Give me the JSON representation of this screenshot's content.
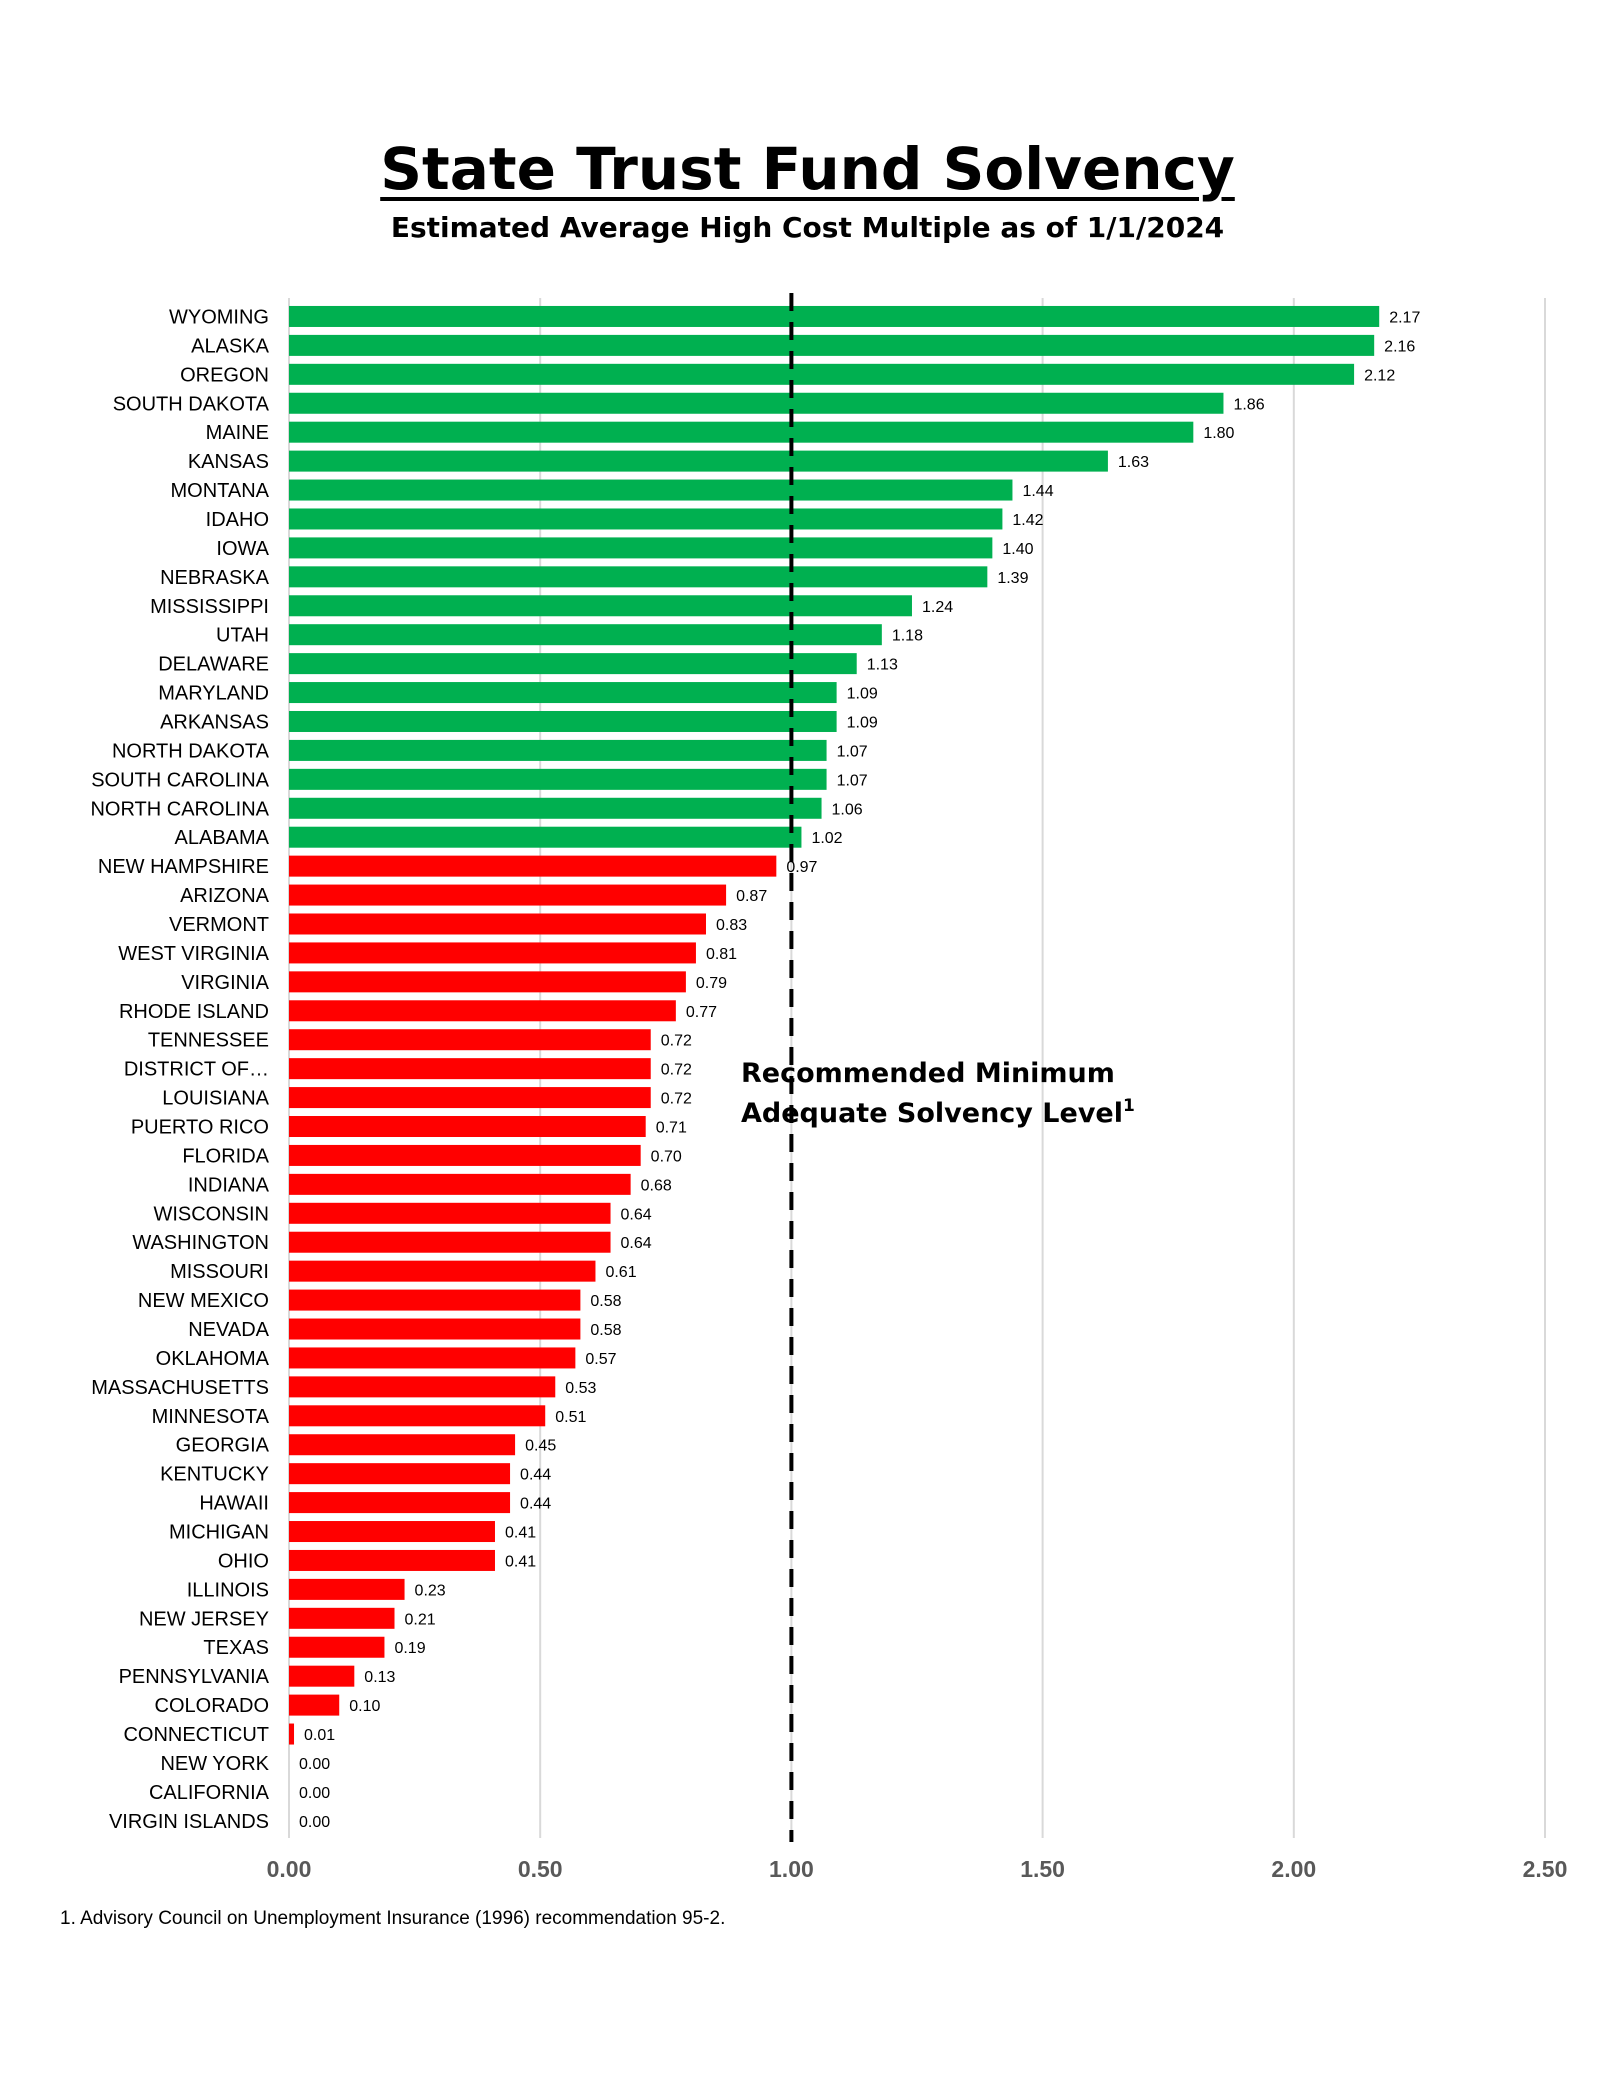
{
  "title": "State Trust Fund Solvency",
  "subtitle": "Estimated Average High Cost Multiple as of 1/1/2024",
  "footnote": "1. Advisory Council on Unemployment Insurance (1996) recommendation 95-2.",
  "colors": {
    "above": "#00b050",
    "below": "#ff0000",
    "grid": "#d9d9d9",
    "reference": "#000000"
  },
  "chart_data": {
    "type": "bar",
    "orientation": "horizontal",
    "title": "State Trust Fund Solvency",
    "subtitle": "Estimated Average High Cost Multiple as of 1/1/2024",
    "xlim": [
      0,
      2.5
    ],
    "xticks": [
      "0.00",
      "0.50",
      "1.00",
      "1.50",
      "2.00",
      "2.50"
    ],
    "grid": "vertical",
    "reference_line": {
      "value": 1.0,
      "style": "dashed",
      "label_line1": "Recommended Minimum",
      "label_line2": "Adequate Solvency Level",
      "label_sup": "1"
    },
    "categories": [
      "WYOMING",
      "ALASKA",
      "OREGON",
      "SOUTH DAKOTA",
      "MAINE",
      "KANSAS",
      "MONTANA",
      "IDAHO",
      "IOWA",
      "NEBRASKA",
      "MISSISSIPPI",
      "UTAH",
      "DELAWARE",
      "MARYLAND",
      "ARKANSAS",
      "NORTH DAKOTA",
      "SOUTH CAROLINA",
      "NORTH CAROLINA",
      "ALABAMA",
      "NEW HAMPSHIRE",
      "ARIZONA",
      "VERMONT",
      "WEST VIRGINIA",
      "VIRGINIA",
      "RHODE ISLAND",
      "TENNESSEE",
      "DISTRICT OF…",
      "LOUISIANA",
      "PUERTO RICO",
      "FLORIDA",
      "INDIANA",
      "WISCONSIN",
      "WASHINGTON",
      "MISSOURI",
      "NEW MEXICO",
      "NEVADA",
      "OKLAHOMA",
      "MASSACHUSETTS",
      "MINNESOTA",
      "GEORGIA",
      "KENTUCKY",
      "HAWAII",
      "MICHIGAN",
      "OHIO",
      "ILLINOIS",
      "NEW JERSEY",
      "TEXAS",
      "PENNSYLVANIA",
      "COLORADO",
      "CONNECTICUT",
      "NEW YORK",
      "CALIFORNIA",
      "VIRGIN ISLANDS"
    ],
    "values": [
      2.17,
      2.16,
      2.12,
      1.86,
      1.8,
      1.63,
      1.44,
      1.42,
      1.4,
      1.39,
      1.24,
      1.18,
      1.13,
      1.09,
      1.09,
      1.07,
      1.07,
      1.06,
      1.02,
      0.97,
      0.87,
      0.83,
      0.81,
      0.79,
      0.77,
      0.72,
      0.72,
      0.72,
      0.71,
      0.7,
      0.68,
      0.64,
      0.64,
      0.61,
      0.58,
      0.58,
      0.57,
      0.53,
      0.51,
      0.45,
      0.44,
      0.44,
      0.41,
      0.41,
      0.23,
      0.21,
      0.19,
      0.13,
      0.1,
      0.01,
      0.0,
      0.0,
      0.0
    ],
    "labels": [
      "2.17",
      "2.16",
      "2.12",
      "1.86",
      "1.80",
      "1.63",
      "1.44",
      "1.42",
      "1.40",
      "1.39",
      "1.24",
      "1.18",
      "1.13",
      "1.09",
      "1.09",
      "1.07",
      "1.07",
      "1.06",
      "1.02",
      "0.97",
      "0.87",
      "0.83",
      "0.81",
      "0.79",
      "0.77",
      "0.72",
      "0.72",
      "0.72",
      "0.71",
      "0.70",
      "0.68",
      "0.64",
      "0.64",
      "0.61",
      "0.58",
      "0.58",
      "0.57",
      "0.53",
      "0.51",
      "0.45",
      "0.44",
      "0.44",
      "0.41",
      "0.41",
      "0.23",
      "0.21",
      "0.19",
      "0.13",
      "0.10",
      "0.01",
      "0.00",
      "0.00",
      "0.00"
    ]
  }
}
